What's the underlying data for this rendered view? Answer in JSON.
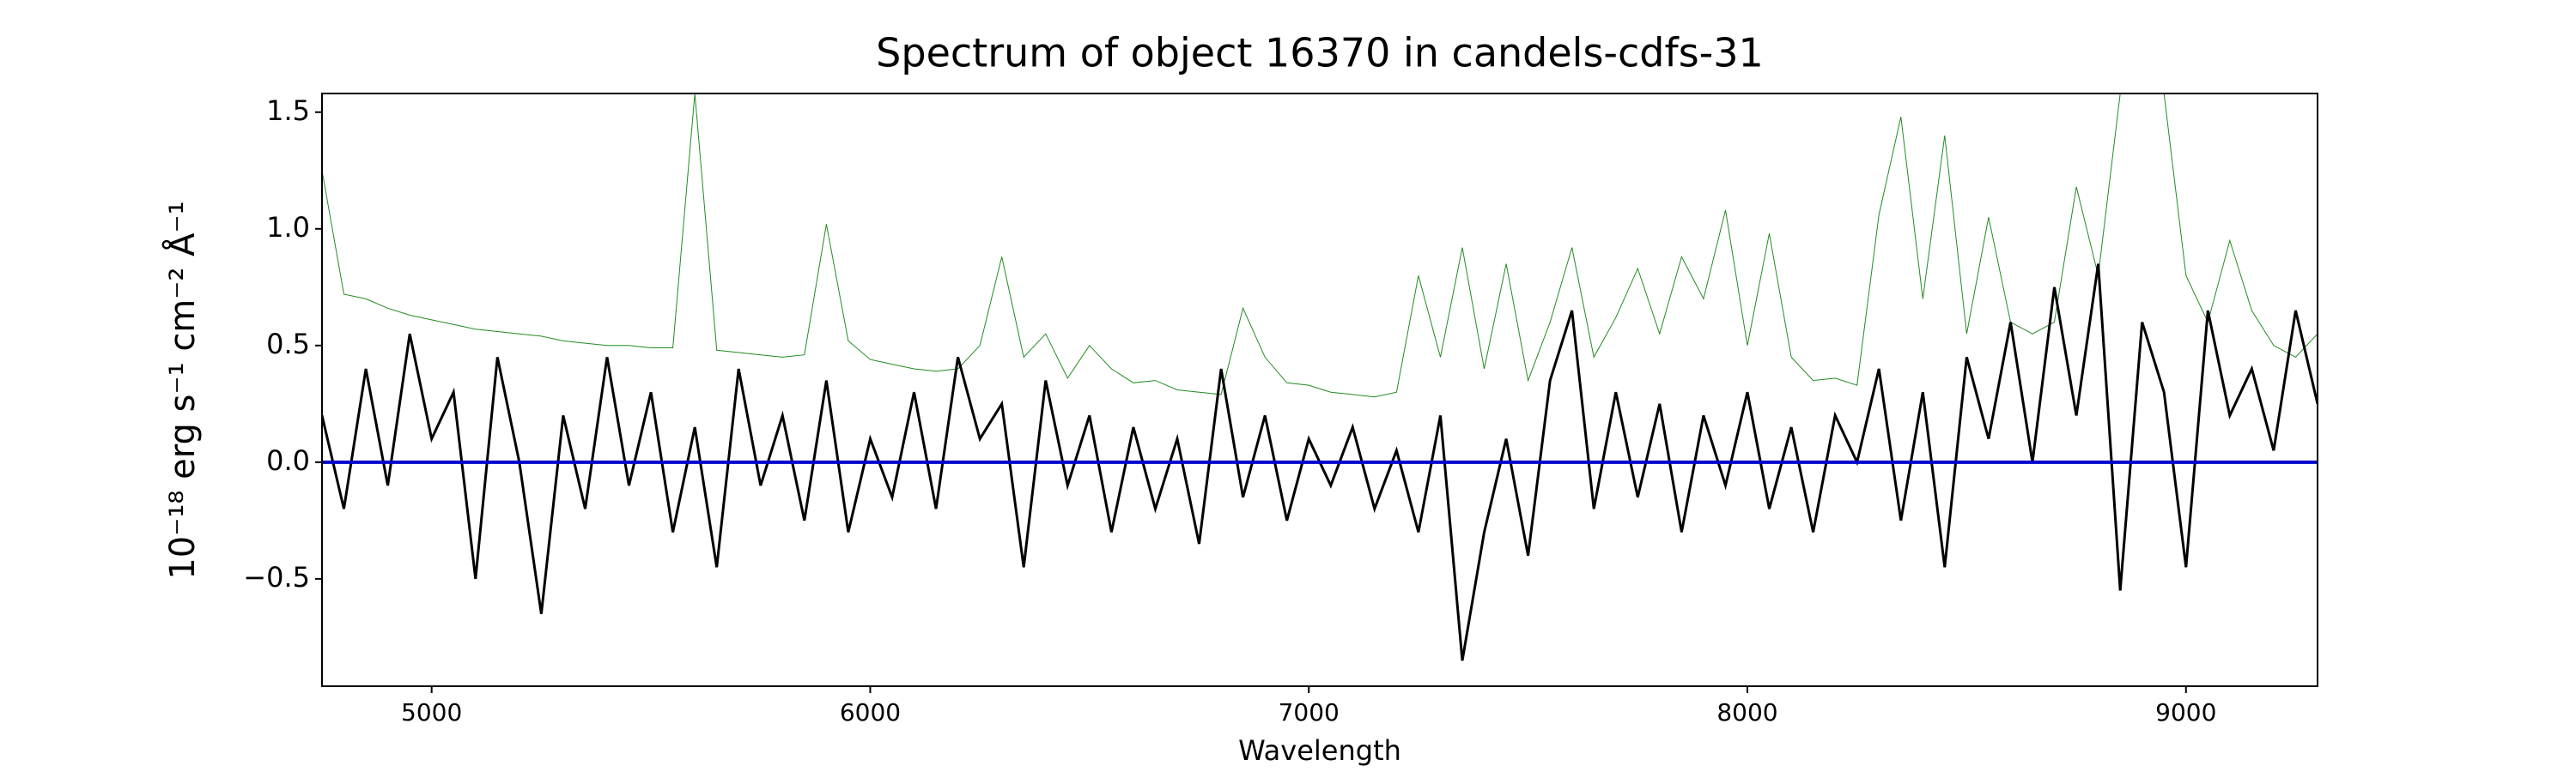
{
  "chart_data": {
    "type": "line",
    "title": "Spectrum of object 16370 in candels-cdfs-31",
    "xlabel": "Wavelength",
    "ylabel": "10⁻¹⁸ erg s⁻¹ cm⁻² Å⁻¹",
    "x": [
      4750,
      4800,
      4850,
      4900,
      4950,
      5000,
      5050,
      5100,
      5150,
      5200,
      5250,
      5300,
      5350,
      5400,
      5450,
      5500,
      5550,
      5600,
      5650,
      5700,
      5750,
      5800,
      5850,
      5900,
      5950,
      6000,
      6050,
      6100,
      6150,
      6200,
      6250,
      6300,
      6350,
      6400,
      6450,
      6500,
      6550,
      6600,
      6650,
      6700,
      6750,
      6800,
      6850,
      6900,
      6950,
      7000,
      7050,
      7100,
      7150,
      7200,
      7250,
      7300,
      7350,
      7400,
      7450,
      7500,
      7550,
      7600,
      7650,
      7700,
      7750,
      7800,
      7850,
      7900,
      7950,
      8000,
      8050,
      8100,
      8150,
      8200,
      8250,
      8300,
      8350,
      8400,
      8450,
      8500,
      8550,
      8600,
      8650,
      8700,
      8750,
      8800,
      8850,
      8900,
      8950,
      9000,
      9050,
      9100,
      9150,
      9200,
      9250,
      9300
    ],
    "series": [
      {
        "color": "#228b22",
        "width": 1,
        "values": [
          1.25,
          0.72,
          0.7,
          0.66,
          0.63,
          0.61,
          0.59,
          0.57,
          0.56,
          0.55,
          0.54,
          0.52,
          0.51,
          0.5,
          0.5,
          0.49,
          0.49,
          1.58,
          0.48,
          0.47,
          0.46,
          0.45,
          0.46,
          1.02,
          0.52,
          0.44,
          0.42,
          0.4,
          0.39,
          0.4,
          0.5,
          0.88,
          0.45,
          0.55,
          0.36,
          0.5,
          0.4,
          0.34,
          0.35,
          0.31,
          0.3,
          0.29,
          0.66,
          0.45,
          0.34,
          0.33,
          0.3,
          0.29,
          0.28,
          0.3,
          0.8,
          0.45,
          0.92,
          0.4,
          0.85,
          0.35,
          0.6,
          0.92,
          0.45,
          0.62,
          0.83,
          0.55,
          0.88,
          0.7,
          1.08,
          0.5,
          0.98,
          0.45,
          0.35,
          0.36,
          0.33,
          1.06,
          1.48,
          0.7,
          1.4,
          0.55,
          1.05,
          0.6,
          0.55,
          0.6,
          1.18,
          0.8,
          1.58,
          1.58,
          1.58,
          0.8,
          0.6,
          0.95,
          0.65,
          0.5,
          0.45,
          0.55
        ]
      },
      {
        "color": "#000000",
        "width": 3,
        "values": [
          0.2,
          -0.2,
          0.4,
          -0.1,
          0.55,
          0.1,
          0.3,
          -0.5,
          0.45,
          0.0,
          -0.65,
          0.2,
          -0.2,
          0.45,
          -0.1,
          0.3,
          -0.3,
          0.15,
          -0.45,
          0.4,
          -0.1,
          0.2,
          -0.25,
          0.35,
          -0.3,
          0.1,
          -0.15,
          0.3,
          -0.2,
          0.45,
          0.1,
          0.25,
          -0.45,
          0.35,
          -0.1,
          0.2,
          -0.3,
          0.15,
          -0.2,
          0.1,
          -0.35,
          0.4,
          -0.15,
          0.2,
          -0.25,
          0.1,
          -0.1,
          0.15,
          -0.2,
          0.05,
          -0.3,
          0.2,
          -0.85,
          -0.3,
          0.1,
          -0.4,
          0.35,
          0.65,
          -0.2,
          0.3,
          -0.15,
          0.25,
          -0.3,
          0.2,
          -0.1,
          0.3,
          -0.2,
          0.15,
          -0.3,
          0.2,
          0.0,
          0.4,
          -0.25,
          0.3,
          -0.45,
          0.45,
          0.1,
          0.6,
          0.0,
          0.75,
          0.2,
          0.85,
          -0.55,
          0.6,
          0.3,
          -0.45,
          0.65,
          0.2,
          0.4,
          0.05,
          0.65,
          0.25
        ]
      }
    ],
    "hline": {
      "value": 0,
      "color": "#0000cc"
    },
    "xlim": [
      4750,
      9300
    ],
    "ylim": [
      -0.96,
      1.58
    ],
    "xticks": [
      5000,
      6000,
      7000,
      8000,
      9000
    ],
    "yticks": [
      {
        "value": -0.5,
        "label": "−0.5"
      },
      {
        "value": 0,
        "label": "0.0"
      },
      {
        "value": 0.5,
        "label": "0.5"
      },
      {
        "value": 1,
        "label": "1.0"
      },
      {
        "value": 1.5,
        "label": "1.5"
      }
    ]
  }
}
